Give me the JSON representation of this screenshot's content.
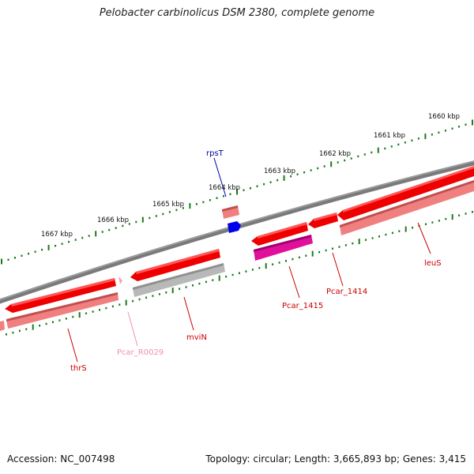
{
  "title": "Pelobacter carbinolicus DSM 2380, complete genome",
  "footer": {
    "accession": "Accession: NC_007498",
    "summary": "Topology: circular; Length: 3,665,893 bp; Genes: 3,415"
  },
  "colors": {
    "backbone": "#7a7a7a",
    "ticks": "#1a7a1a",
    "gene_red": "#ee0000",
    "gene_pink": "#f08080",
    "gene_grey": "#b8b8b8",
    "gene_magenta": "#e0109a",
    "gene_blue": "#0000ee",
    "rna_pink": "#f4a0c0"
  },
  "scale_labels": [
    "1660 kbp",
    "1661 kbp",
    "1662 kbp",
    "1663 kbp",
    "1664 kbp",
    "1665 kbp",
    "1666 kbp",
    "1667 kbp"
  ],
  "gene_labels": [
    "rpsT",
    "leuS",
    "Pcar_1414",
    "Pcar_1415",
    "mviN",
    "Pcar_R0029",
    "thrS"
  ]
}
